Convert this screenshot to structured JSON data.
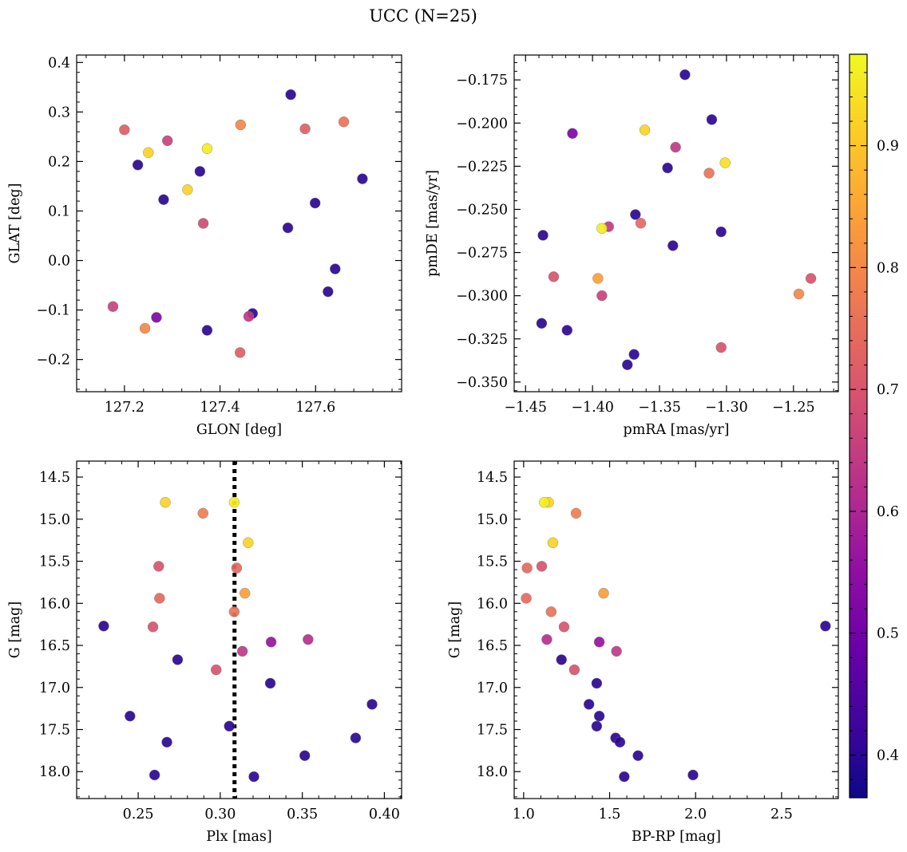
{
  "figure": {
    "title": "UCC (N=25)"
  },
  "colorbar": {
    "colormap": "plasma",
    "range": [
      0.365,
      0.975
    ],
    "ticks": [
      0.4,
      0.5,
      0.6,
      0.7,
      0.8,
      0.9
    ],
    "tick_labels": [
      "0.4",
      "0.5",
      "0.6",
      "0.7",
      "0.8",
      "0.9"
    ]
  },
  "chart_data": [
    {
      "type": "scatter",
      "xlabel": "GLON [deg]",
      "ylabel": "GLAT [deg]",
      "xlim": [
        127.1,
        127.78
      ],
      "ylim": [
        -0.265,
        0.415
      ],
      "xticks": [
        127.2,
        127.4,
        127.6
      ],
      "xtick_labels": [
        "127.2",
        "127.4",
        "127.6"
      ],
      "yticks": [
        -0.2,
        -0.1,
        0.0,
        0.1,
        0.2,
        0.3,
        0.4
      ],
      "ytick_labels": [
        "−0.2",
        "−0.1",
        "0.0",
        "0.1",
        "0.2",
        "0.3",
        "0.4"
      ],
      "points": [
        {
          "x": 127.2,
          "y": 0.264,
          "c": 0.72
        },
        {
          "x": 127.25,
          "y": 0.218,
          "c": 0.92
        },
        {
          "x": 127.29,
          "y": 0.242,
          "c": 0.66
        },
        {
          "x": 127.228,
          "y": 0.193,
          "c": 0.4
        },
        {
          "x": 127.282,
          "y": 0.123,
          "c": 0.4
        },
        {
          "x": 127.373,
          "y": 0.226,
          "c": 0.96
        },
        {
          "x": 127.332,
          "y": 0.143,
          "c": 0.92
        },
        {
          "x": 127.358,
          "y": 0.18,
          "c": 0.4
        },
        {
          "x": 127.365,
          "y": 0.075,
          "c": 0.68
        },
        {
          "x": 127.443,
          "y": 0.274,
          "c": 0.8
        },
        {
          "x": 127.548,
          "y": 0.335,
          "c": 0.4
        },
        {
          "x": 127.578,
          "y": 0.266,
          "c": 0.72
        },
        {
          "x": 127.659,
          "y": 0.28,
          "c": 0.76
        },
        {
          "x": 127.698,
          "y": 0.165,
          "c": 0.4
        },
        {
          "x": 127.599,
          "y": 0.116,
          "c": 0.4
        },
        {
          "x": 127.542,
          "y": 0.066,
          "c": 0.4
        },
        {
          "x": 127.641,
          "y": -0.017,
          "c": 0.4
        },
        {
          "x": 127.626,
          "y": -0.063,
          "c": 0.4
        },
        {
          "x": 127.176,
          "y": -0.093,
          "c": 0.66
        },
        {
          "x": 127.243,
          "y": -0.137,
          "c": 0.8
        },
        {
          "x": 127.267,
          "y": -0.115,
          "c": 0.52
        },
        {
          "x": 127.373,
          "y": -0.141,
          "c": 0.4
        },
        {
          "x": 127.468,
          "y": -0.107,
          "c": 0.4
        },
        {
          "x": 127.46,
          "y": -0.113,
          "c": 0.64
        },
        {
          "x": 127.442,
          "y": -0.186,
          "c": 0.72
        }
      ]
    },
    {
      "type": "scatter",
      "xlabel": "pmRA [mas/yr]",
      "ylabel": "pmDE [mas/yr]",
      "xlim": [
        -1.4585,
        -1.2165
      ],
      "ylim": [
        -0.3556,
        -0.1606
      ],
      "xticks": [
        -1.45,
        -1.4,
        -1.35,
        -1.3,
        -1.25
      ],
      "xtick_labels": [
        "−1.45",
        "−1.40",
        "−1.35",
        "−1.30",
        "−1.25"
      ],
      "yticks": [
        -0.35,
        -0.325,
        -0.3,
        -0.275,
        -0.25,
        -0.225,
        -0.2,
        -0.175
      ],
      "ytick_labels": [
        "−0.350",
        "−0.325",
        "−0.300",
        "−0.275",
        "−0.250",
        "−0.225",
        "−0.200",
        "−0.175"
      ],
      "points": [
        {
          "x": -1.331,
          "y": -0.172,
          "c": 0.4
        },
        {
          "x": -1.311,
          "y": -0.198,
          "c": 0.4
        },
        {
          "x": -1.415,
          "y": -0.206,
          "c": 0.52
        },
        {
          "x": -1.361,
          "y": -0.204,
          "c": 0.92
        },
        {
          "x": -1.338,
          "y": -0.214,
          "c": 0.64
        },
        {
          "x": -1.301,
          "y": -0.223,
          "c": 0.94
        },
        {
          "x": -1.344,
          "y": -0.226,
          "c": 0.4
        },
        {
          "x": -1.313,
          "y": -0.229,
          "c": 0.76
        },
        {
          "x": -1.368,
          "y": -0.253,
          "c": 0.4
        },
        {
          "x": -1.364,
          "y": -0.258,
          "c": 0.74
        },
        {
          "x": -1.388,
          "y": -0.26,
          "c": 0.64
        },
        {
          "x": -1.393,
          "y": -0.261,
          "c": 0.96
        },
        {
          "x": -1.437,
          "y": -0.265,
          "c": 0.4
        },
        {
          "x": -1.304,
          "y": -0.263,
          "c": 0.4
        },
        {
          "x": -1.34,
          "y": -0.271,
          "c": 0.4
        },
        {
          "x": -1.429,
          "y": -0.289,
          "c": 0.7
        },
        {
          "x": -1.396,
          "y": -0.29,
          "c": 0.84
        },
        {
          "x": -1.237,
          "y": -0.29,
          "c": 0.7
        },
        {
          "x": -1.393,
          "y": -0.3,
          "c": 0.66
        },
        {
          "x": -1.246,
          "y": -0.299,
          "c": 0.8
        },
        {
          "x": -1.438,
          "y": -0.316,
          "c": 0.4
        },
        {
          "x": -1.419,
          "y": -0.32,
          "c": 0.4
        },
        {
          "x": -1.304,
          "y": -0.33,
          "c": 0.7
        },
        {
          "x": -1.369,
          "y": -0.334,
          "c": 0.4
        },
        {
          "x": -1.374,
          "y": -0.34,
          "c": 0.4
        }
      ]
    },
    {
      "type": "scatter",
      "xlabel": "Plx [mas]",
      "ylabel": "G [mag]",
      "xlim": [
        0.2125,
        0.4105
      ],
      "ylim": [
        18.32,
        14.31
      ],
      "y_inverted": true,
      "vline": {
        "x": 0.3087,
        "style": "dotted",
        "color": "#000000"
      },
      "xticks": [
        0.25,
        0.3,
        0.35,
        0.4
      ],
      "xtick_labels": [
        "0.25",
        "0.30",
        "0.35",
        "0.40"
      ],
      "yticks": [
        14.5,
        15.0,
        15.5,
        16.0,
        16.5,
        17.0,
        17.5,
        18.0
      ],
      "ytick_labels": [
        "14.5",
        "15.0",
        "15.5",
        "16.0",
        "16.5",
        "17.0",
        "17.5",
        "18.0"
      ],
      "points": [
        {
          "x": 0.2665,
          "y": 14.8,
          "c": 0.92
        },
        {
          "x": 0.3085,
          "y": 14.8,
          "c": 0.96
        },
        {
          "x": 0.2895,
          "y": 14.93,
          "c": 0.78
        },
        {
          "x": 0.317,
          "y": 15.28,
          "c": 0.92
        },
        {
          "x": 0.2625,
          "y": 15.56,
          "c": 0.7
        },
        {
          "x": 0.31,
          "y": 15.58,
          "c": 0.74
        },
        {
          "x": 0.263,
          "y": 15.94,
          "c": 0.74
        },
        {
          "x": 0.315,
          "y": 15.88,
          "c": 0.84
        },
        {
          "x": 0.3085,
          "y": 16.1,
          "c": 0.76
        },
        {
          "x": 0.229,
          "y": 16.27,
          "c": 0.4
        },
        {
          "x": 0.259,
          "y": 16.28,
          "c": 0.7
        },
        {
          "x": 0.3535,
          "y": 16.43,
          "c": 0.62
        },
        {
          "x": 0.331,
          "y": 16.46,
          "c": 0.56
        },
        {
          "x": 0.3135,
          "y": 16.57,
          "c": 0.64
        },
        {
          "x": 0.274,
          "y": 16.67,
          "c": 0.4
        },
        {
          "x": 0.2975,
          "y": 16.79,
          "c": 0.7
        },
        {
          "x": 0.3305,
          "y": 16.95,
          "c": 0.4
        },
        {
          "x": 0.3925,
          "y": 17.2,
          "c": 0.4
        },
        {
          "x": 0.245,
          "y": 17.34,
          "c": 0.4
        },
        {
          "x": 0.3055,
          "y": 17.46,
          "c": 0.4
        },
        {
          "x": 0.3825,
          "y": 17.6,
          "c": 0.4
        },
        {
          "x": 0.2675,
          "y": 17.65,
          "c": 0.4
        },
        {
          "x": 0.3515,
          "y": 17.81,
          "c": 0.4
        },
        {
          "x": 0.26,
          "y": 18.04,
          "c": 0.4
        },
        {
          "x": 0.3205,
          "y": 18.06,
          "c": 0.4
        }
      ]
    },
    {
      "type": "scatter",
      "xlabel": "BP-RP [mag]",
      "ylabel": "G [mag]",
      "xlim": [
        0.945,
        2.83
      ],
      "ylim": [
        18.32,
        14.31
      ],
      "y_inverted": true,
      "xticks": [
        1.0,
        1.5,
        2.0,
        2.5
      ],
      "xtick_labels": [
        "1.0",
        "1.5",
        "2.0",
        "2.5"
      ],
      "yticks": [
        14.5,
        15.0,
        15.5,
        16.0,
        16.5,
        17.0,
        17.5,
        18.0
      ],
      "ytick_labels": [
        "14.5",
        "15.0",
        "15.5",
        "16.0",
        "16.5",
        "17.0",
        "17.5",
        "18.0"
      ],
      "points": [
        {
          "x": 1.145,
          "y": 14.8,
          "c": 0.92
        },
        {
          "x": 1.12,
          "y": 14.8,
          "c": 0.96
        },
        {
          "x": 1.305,
          "y": 14.93,
          "c": 0.78
        },
        {
          "x": 1.17,
          "y": 15.28,
          "c": 0.92
        },
        {
          "x": 1.02,
          "y": 15.58,
          "c": 0.74
        },
        {
          "x": 1.105,
          "y": 15.56,
          "c": 0.7
        },
        {
          "x": 1.015,
          "y": 15.94,
          "c": 0.74
        },
        {
          "x": 1.465,
          "y": 15.88,
          "c": 0.84
        },
        {
          "x": 1.16,
          "y": 16.1,
          "c": 0.76
        },
        {
          "x": 2.755,
          "y": 16.27,
          "c": 0.4
        },
        {
          "x": 1.235,
          "y": 16.28,
          "c": 0.7
        },
        {
          "x": 1.135,
          "y": 16.43,
          "c": 0.62
        },
        {
          "x": 1.44,
          "y": 16.46,
          "c": 0.56
        },
        {
          "x": 1.54,
          "y": 16.57,
          "c": 0.64
        },
        {
          "x": 1.22,
          "y": 16.67,
          "c": 0.4
        },
        {
          "x": 1.295,
          "y": 16.79,
          "c": 0.7
        },
        {
          "x": 1.425,
          "y": 16.95,
          "c": 0.4
        },
        {
          "x": 1.38,
          "y": 17.2,
          "c": 0.4
        },
        {
          "x": 1.44,
          "y": 17.34,
          "c": 0.4
        },
        {
          "x": 1.425,
          "y": 17.46,
          "c": 0.4
        },
        {
          "x": 1.535,
          "y": 17.6,
          "c": 0.4
        },
        {
          "x": 1.56,
          "y": 17.65,
          "c": 0.4
        },
        {
          "x": 1.665,
          "y": 17.81,
          "c": 0.4
        },
        {
          "x": 1.985,
          "y": 18.04,
          "c": 0.4
        },
        {
          "x": 1.585,
          "y": 18.06,
          "c": 0.4
        }
      ]
    }
  ]
}
